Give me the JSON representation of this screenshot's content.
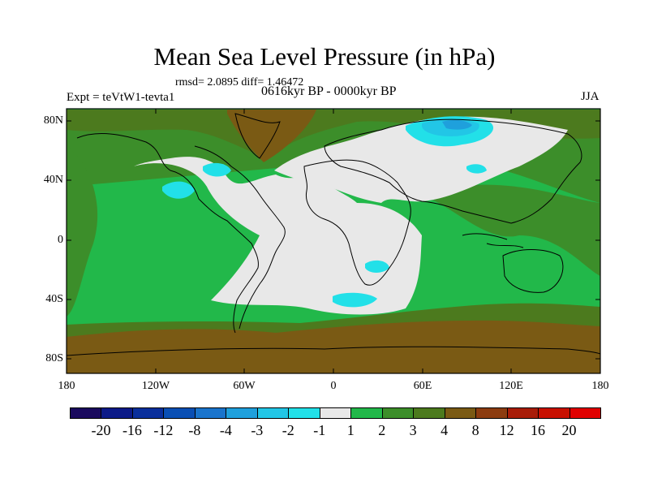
{
  "title": "Mean Sea Level Pressure (in hPa)",
  "stats": "rmsd= 2.0895 diff= 1.46472",
  "experiment": "Expt = teVtW1-tevta1",
  "period": "0616kyr BP - 0000kyr BP",
  "season": "JJA",
  "lat_labels": [
    "80N",
    "40N",
    "0",
    "40S",
    "80S"
  ],
  "lon_labels": [
    "180",
    "120W",
    "60W",
    "0",
    "60E",
    "120E",
    "180"
  ],
  "colorbar": {
    "labels": [
      "-20",
      "-16",
      "-12",
      "-8",
      "-4",
      "-3",
      "-2",
      "-1",
      "1",
      "2",
      "3",
      "4",
      "8",
      "12",
      "16",
      "20"
    ],
    "colors": [
      "#1a0a5e",
      "#0c1a88",
      "#0a2f9c",
      "#0a4fb4",
      "#1a74cc",
      "#1fa0dc",
      "#22c6e6",
      "#22e0e8",
      "#e8e8e8",
      "#22b84a",
      "#3c8e2a",
      "#4c7a1e",
      "#7a5a14",
      "#8c3c10",
      "#a81c08",
      "#c81000",
      "#e00000"
    ]
  }
}
